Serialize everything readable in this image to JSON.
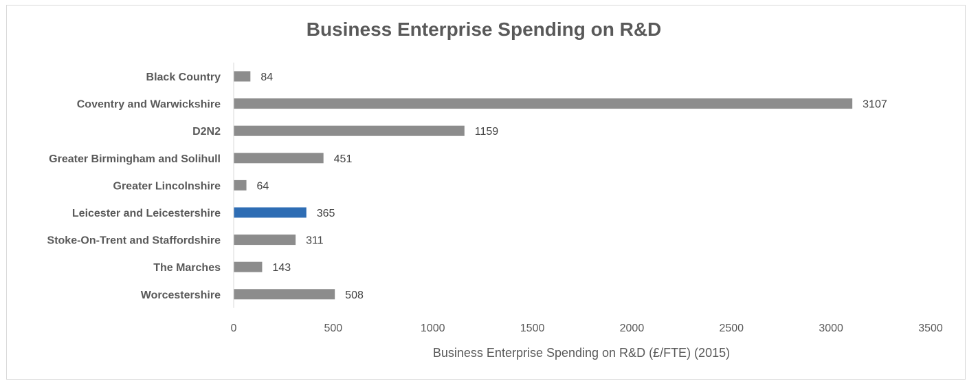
{
  "chart_data": {
    "type": "bar",
    "orientation": "horizontal",
    "title": "Business Enterprise Spending on R&D",
    "xlabel": "Business Enterprise Spending on R&D (£/FTE) (2015)",
    "ylabel": "",
    "categories": [
      "Black Country",
      "Coventry and Warwickshire",
      "D2N2",
      "Greater Birmingham and Solihull",
      "Greater Lincolnshire",
      "Leicester and Leicestershire",
      "Stoke-On-Trent and Staffordshire",
      "The Marches",
      "Worcestershire"
    ],
    "values": [
      84,
      3107,
      1159,
      451,
      64,
      365,
      311,
      143,
      508
    ],
    "data_labels": [
      "84",
      "3107",
      "1159",
      "451",
      "64",
      "365",
      "311",
      "143",
      "508"
    ],
    "highlight_index": 5,
    "xlim": [
      0,
      3500
    ],
    "xticks": [
      "0",
      "500",
      "1000",
      "1500",
      "2000",
      "2500",
      "3000",
      "3500"
    ],
    "grid": false,
    "legend": "none",
    "colors": {
      "bar": "#8c8c8c",
      "highlight": "#2e6db4"
    }
  }
}
